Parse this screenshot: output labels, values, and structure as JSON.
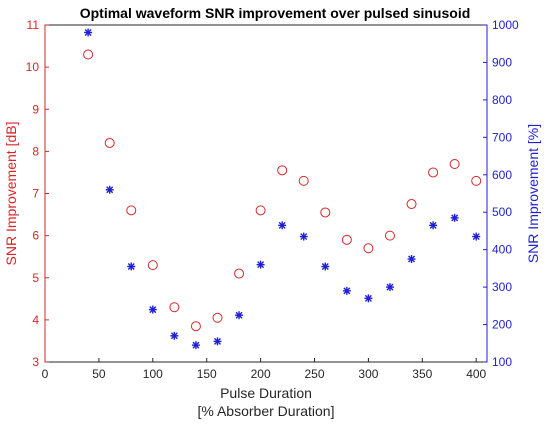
{
  "chart_data": {
    "type": "scatter",
    "title": "Optimal waveform SNR improvement over pulsed sinusoid",
    "xlabel_lines": [
      "Pulse Duration",
      "[% Absorber Duration]"
    ],
    "xlim": [
      0,
      410
    ],
    "xticks": [
      0,
      50,
      100,
      150,
      200,
      250,
      300,
      350,
      400
    ],
    "left_axis": {
      "label": "SNR Improvement [dB]",
      "lim": [
        3,
        11
      ],
      "ticks": [
        3,
        4,
        5,
        6,
        7,
        8,
        9,
        10,
        11
      ],
      "color": "#d62728"
    },
    "right_axis": {
      "label": "SNR Improvement [%]",
      "lim": [
        100,
        1000
      ],
      "ticks": [
        100,
        200,
        300,
        400,
        500,
        600,
        700,
        800,
        900,
        1000
      ],
      "color": "#1f1fd6"
    },
    "grid": false,
    "series": [
      {
        "axis": "left",
        "marker": "circle",
        "color": "#d62728",
        "x": [
          40,
          60,
          80,
          100,
          120,
          140,
          160,
          180,
          200,
          220,
          240,
          260,
          280,
          300,
          320,
          340,
          360,
          380,
          400
        ],
        "values": [
          10.3,
          8.2,
          6.6,
          5.3,
          4.3,
          3.85,
          4.05,
          5.1,
          6.6,
          7.55,
          7.3,
          6.55,
          5.9,
          5.7,
          6.0,
          6.75,
          7.5,
          7.7,
          7.3
        ]
      },
      {
        "axis": "right",
        "marker": "asterisk",
        "color": "#1f1fd6",
        "x": [
          40,
          60,
          80,
          100,
          120,
          140,
          160,
          180,
          200,
          220,
          240,
          260,
          280,
          300,
          320,
          340,
          360,
          380,
          400
        ],
        "values": [
          980,
          560,
          355,
          240,
          170,
          145,
          155,
          225,
          360,
          465,
          435,
          355,
          290,
          270,
          300,
          375,
          465,
          485,
          435
        ]
      }
    ]
  }
}
